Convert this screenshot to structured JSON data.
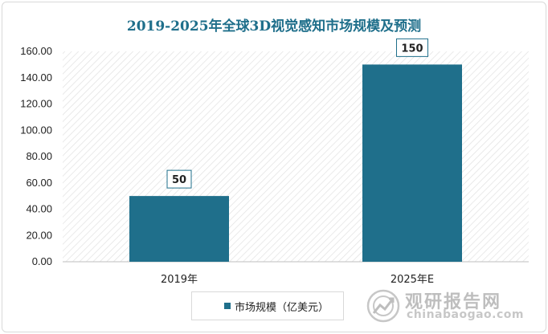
{
  "colors": {
    "bar": "#1f6f8b",
    "title": "#1f6f8b",
    "label_border": "#1f6f8b"
  },
  "chart_data": {
    "type": "bar",
    "title": "2019-2025年全球3D视觉感知市场规模及预测",
    "xlabel": "",
    "ylabel": "",
    "categories": [
      "2019年",
      "2025年E"
    ],
    "series": [
      {
        "name": "市场规模（亿美元）",
        "values": [
          50,
          150
        ]
      }
    ],
    "data_labels": [
      "50",
      "150"
    ],
    "ylim": [
      0,
      160
    ],
    "yticks": [
      "0.00",
      "20.00",
      "40.00",
      "60.00",
      "80.00",
      "100.00",
      "120.00",
      "140.00",
      "160.00"
    ],
    "grid": false,
    "legend_position": "bottom"
  },
  "watermark": {
    "name": "观研报告网",
    "site": "chinabaogao.com",
    "icon": "logo-icon"
  }
}
